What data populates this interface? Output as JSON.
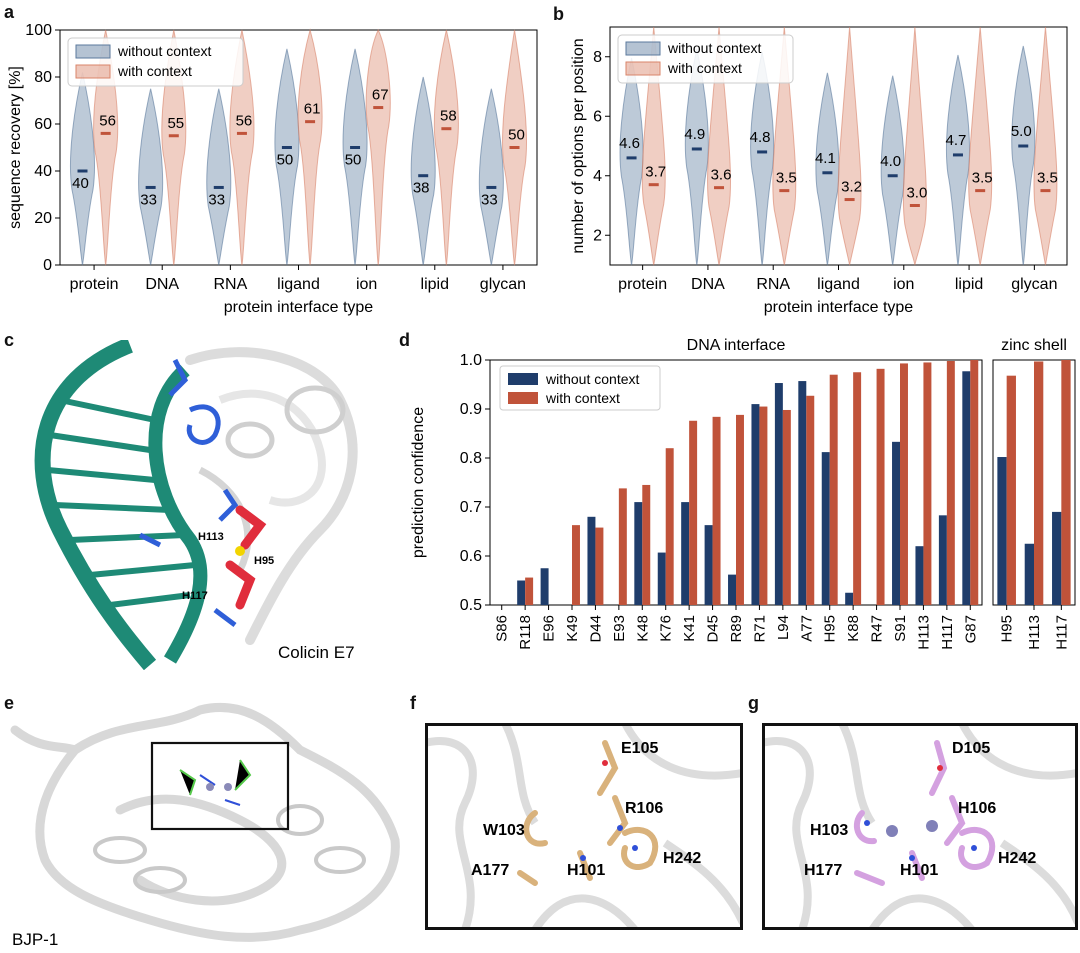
{
  "panel_letters": {
    "a": "a",
    "b": "b",
    "c": "c",
    "d": "d",
    "e": "e",
    "f": "f",
    "g": "g"
  },
  "colors": {
    "without": "#5b7a9d",
    "with": "#d9846a",
    "bar_without": "#1f3d6b",
    "bar_with": "#c0533a",
    "dna": "#1e8a76",
    "blue_res": "#2f5fd8",
    "red_res": "#e02d3c",
    "zinc": "#f2d400"
  },
  "chart_data": [
    {
      "id": "a",
      "type": "violin",
      "xlabel": "protein interface type",
      "ylabel": "sequence recovery [%]",
      "ylim": [
        0,
        100
      ],
      "yticks": [
        0,
        20,
        40,
        60,
        80,
        100
      ],
      "categories": [
        "protein",
        "DNA",
        "RNA",
        "ligand",
        "ion",
        "lipid",
        "glycan"
      ],
      "legend": [
        "without context",
        "with context"
      ],
      "legend_position": "top-left",
      "series": [
        {
          "name": "without context",
          "medians": [
            40,
            33,
            33,
            50,
            50,
            38,
            33
          ]
        },
        {
          "name": "with context",
          "medians": [
            56,
            55,
            56,
            61,
            67,
            58,
            50
          ]
        }
      ]
    },
    {
      "id": "b",
      "type": "violin",
      "xlabel": "protein interface type",
      "ylabel": "number of options per position",
      "ylim": [
        1,
        9
      ],
      "yticks": [
        2,
        4,
        6,
        8
      ],
      "categories": [
        "protein",
        "DNA",
        "RNA",
        "ligand",
        "ion",
        "lipid",
        "glycan"
      ],
      "legend": [
        "without context",
        "with context"
      ],
      "legend_position": "top-left",
      "series": [
        {
          "name": "without context",
          "medians": [
            4.6,
            4.9,
            4.8,
            4.1,
            4.0,
            4.7,
            5.0
          ],
          "labels": [
            "4.6",
            "4.9",
            "4.8",
            "4.1",
            "4.0",
            "4.7",
            "5.0"
          ]
        },
        {
          "name": "with context",
          "medians": [
            3.7,
            3.6,
            3.5,
            3.2,
            3.0,
            3.5,
            3.5
          ],
          "labels": [
            "3.7",
            "3.6",
            "3.5",
            "3.2",
            "3.0",
            "3.5",
            "3.5"
          ]
        }
      ]
    },
    {
      "id": "d",
      "type": "bar",
      "ylabel": "prediction confidence",
      "ylim": [
        0.5,
        1.0
      ],
      "yticks": [
        "0.5",
        "0.6",
        "0.7",
        "0.8",
        "0.9",
        "1.0"
      ],
      "legend": [
        "without context",
        "with context"
      ],
      "legend_position": "top-left",
      "groups": [
        {
          "title": "DNA interface",
          "categories": [
            "S86",
            "R118",
            "E96",
            "K49",
            "D44",
            "E93",
            "K48",
            "K76",
            "K41",
            "D45",
            "R89",
            "R71",
            "L94",
            "A77",
            "H95",
            "K88",
            "R47",
            "S91",
            "H113",
            "H117",
            "G87"
          ],
          "series": [
            {
              "name": "without context",
              "values": [
                0.5,
                0.55,
                0.575,
                0.5,
                0.68,
                0.5,
                0.71,
                0.607,
                0.71,
                0.663,
                0.562,
                0.91,
                0.953,
                0.957,
                0.812,
                0.525,
                0.5,
                0.833,
                0.62,
                0.683,
                0.977
              ]
            },
            {
              "name": "with context",
              "values": [
                0.5,
                0.556,
                0.5,
                0.663,
                0.658,
                0.738,
                0.745,
                0.82,
                0.876,
                0.884,
                0.888,
                0.905,
                0.898,
                0.927,
                0.97,
                0.975,
                0.982,
                0.993,
                0.995,
                0.998,
                1.0
              ]
            }
          ]
        },
        {
          "title": "zinc shell",
          "categories": [
            "H95",
            "H113",
            "H117"
          ],
          "series": [
            {
              "name": "without context",
              "values": [
                0.802,
                0.625,
                0.69
              ]
            },
            {
              "name": "with context",
              "values": [
                0.968,
                0.997,
                1.0
              ]
            }
          ]
        }
      ]
    }
  ],
  "structures": {
    "c": {
      "caption": "Colicin E7",
      "labels": [
        "H113",
        "H95",
        "H117"
      ]
    },
    "e": {
      "caption": "BJP-1"
    },
    "f": {
      "labels": [
        "E105",
        "W103",
        "R106",
        "A177",
        "H101",
        "H242"
      ]
    },
    "g": {
      "labels": [
        "D105",
        "H103",
        "H106",
        "H177",
        "H101",
        "H242"
      ]
    }
  }
}
